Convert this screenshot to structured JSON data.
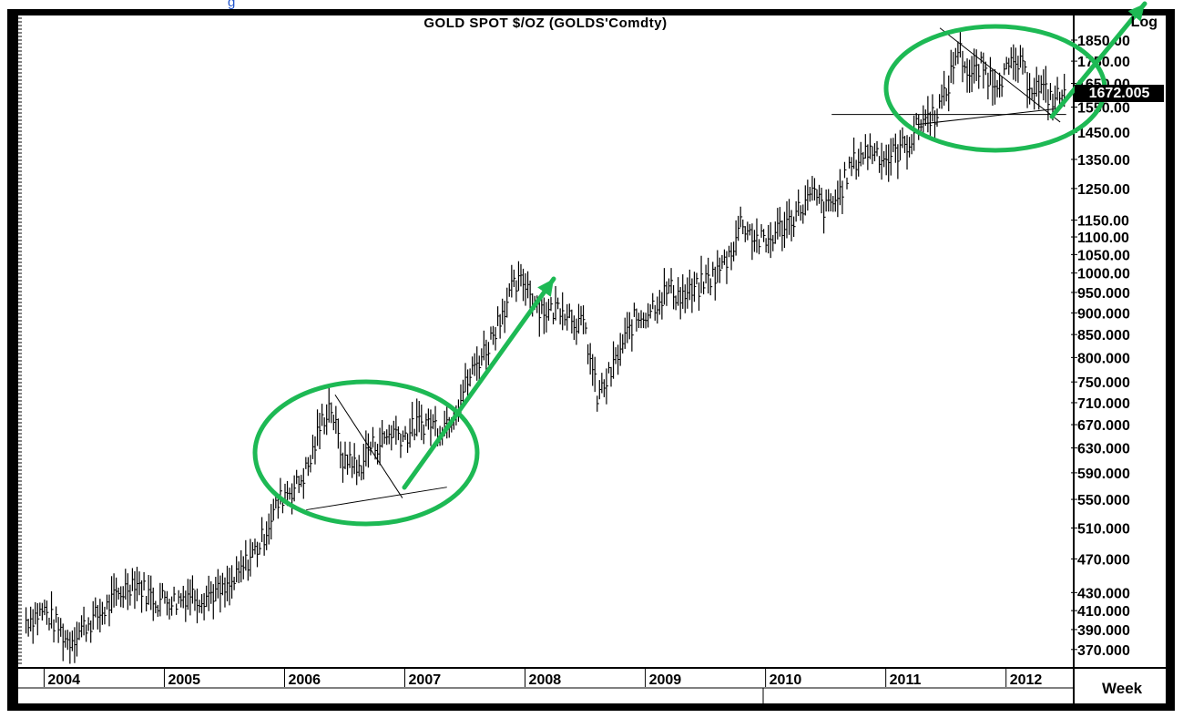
{
  "chart_data": {
    "type": "bar",
    "title": "GOLD SPOT $/OZ (GOLDS'Comdty)",
    "scale_label": "Log",
    "periodicity": "Week",
    "last_price": "1672.005",
    "y_scale": "log",
    "ylim": [
      355,
      1960
    ],
    "y_ticks": [
      1850,
      1750,
      1650,
      1550,
      1450,
      1350,
      1250,
      1150,
      1100,
      1050,
      1000,
      950,
      900,
      850,
      800,
      750,
      710,
      670,
      630,
      590,
      550,
      510,
      470,
      430,
      410,
      390,
      370
    ],
    "y_tick_labels": [
      "1850.00",
      "1750.00",
      "1650.00",
      "1550.00",
      "1450.00",
      "1350.00",
      "1250.00",
      "1150.00",
      "1100.00",
      "1050.00",
      "1000.00",
      "950.000",
      "900.000",
      "850.000",
      "800.000",
      "750.000",
      "710.000",
      "670.000",
      "630.000",
      "590.000",
      "550.000",
      "510.000",
      "470.000",
      "430.000",
      "410.000",
      "390.000",
      "370.000"
    ],
    "x_years": [
      "2004",
      "2005",
      "2006",
      "2007",
      "2008",
      "2009",
      "2010",
      "2011",
      "2012"
    ],
    "xlim": [
      2003.8,
      2012.54
    ],
    "series": [
      {
        "x": [
          2003.85,
          2004.0,
          2004.1,
          2004.2,
          2004.3,
          2004.4,
          2004.5,
          2004.6,
          2004.75,
          2004.85,
          2004.95,
          2005.0,
          2005.1,
          2005.2,
          2005.3,
          2005.4,
          2005.5,
          2005.6,
          2005.7,
          2005.8,
          2005.9,
          2006.0,
          2006.1,
          2006.2,
          2006.3,
          2006.38,
          2006.45,
          2006.5,
          2006.55,
          2006.6,
          2006.7,
          2006.8,
          2006.9,
          2007.0,
          2007.1,
          2007.2,
          2007.3,
          2007.4,
          2007.5,
          2007.6,
          2007.7,
          2007.8,
          2007.9,
          2008.0,
          2008.1,
          2008.2,
          2008.3,
          2008.4,
          2008.5,
          2008.6,
          2008.7,
          2008.8,
          2008.9,
          2009.0,
          2009.1,
          2009.2,
          2009.3,
          2009.4,
          2009.5,
          2009.6,
          2009.7,
          2009.8,
          2009.9,
          2010.0,
          2010.1,
          2010.2,
          2010.3,
          2010.4,
          2010.5,
          2010.6,
          2010.7,
          2010.8,
          2010.9,
          2011.0,
          2011.1,
          2011.2,
          2011.3,
          2011.4,
          2011.5,
          2011.6,
          2011.7,
          2011.8,
          2011.9,
          2012.0,
          2012.1,
          2012.2,
          2012.3,
          2012.4,
          2012.5
        ],
        "values": [
          400,
          410,
          395,
          378,
          390,
          400,
          410,
          425,
          445,
          430,
          420,
          425,
          420,
          430,
          425,
          430,
          430,
          445,
          470,
          490,
          530,
          560,
          570,
          600,
          670,
          710,
          640,
          600,
          620,
          590,
          630,
          640,
          660,
          650,
          670,
          675,
          665,
          690,
          740,
          790,
          830,
          900,
          960,
          980,
          920,
          900,
          920,
          890,
          860,
          720,
          760,
          820,
          880,
          900,
          930,
          960,
          940,
          950,
          980,
          1000,
          1050,
          1150,
          1100,
          1080,
          1120,
          1150,
          1190,
          1230,
          1180,
          1220,
          1320,
          1370,
          1390,
          1350,
          1380,
          1420,
          1500,
          1520,
          1600,
          1820,
          1680,
          1720,
          1660,
          1700,
          1740,
          1650,
          1620,
          1580,
          1620
        ]
      }
    ],
    "annotations": {
      "ellipses": 2,
      "arrows": 3
    },
    "colors": {
      "frame": "#000000",
      "bars": "#000000",
      "annotation": "#1db954",
      "stray_text": "#2255cc"
    }
  },
  "stray_fragment": "g"
}
